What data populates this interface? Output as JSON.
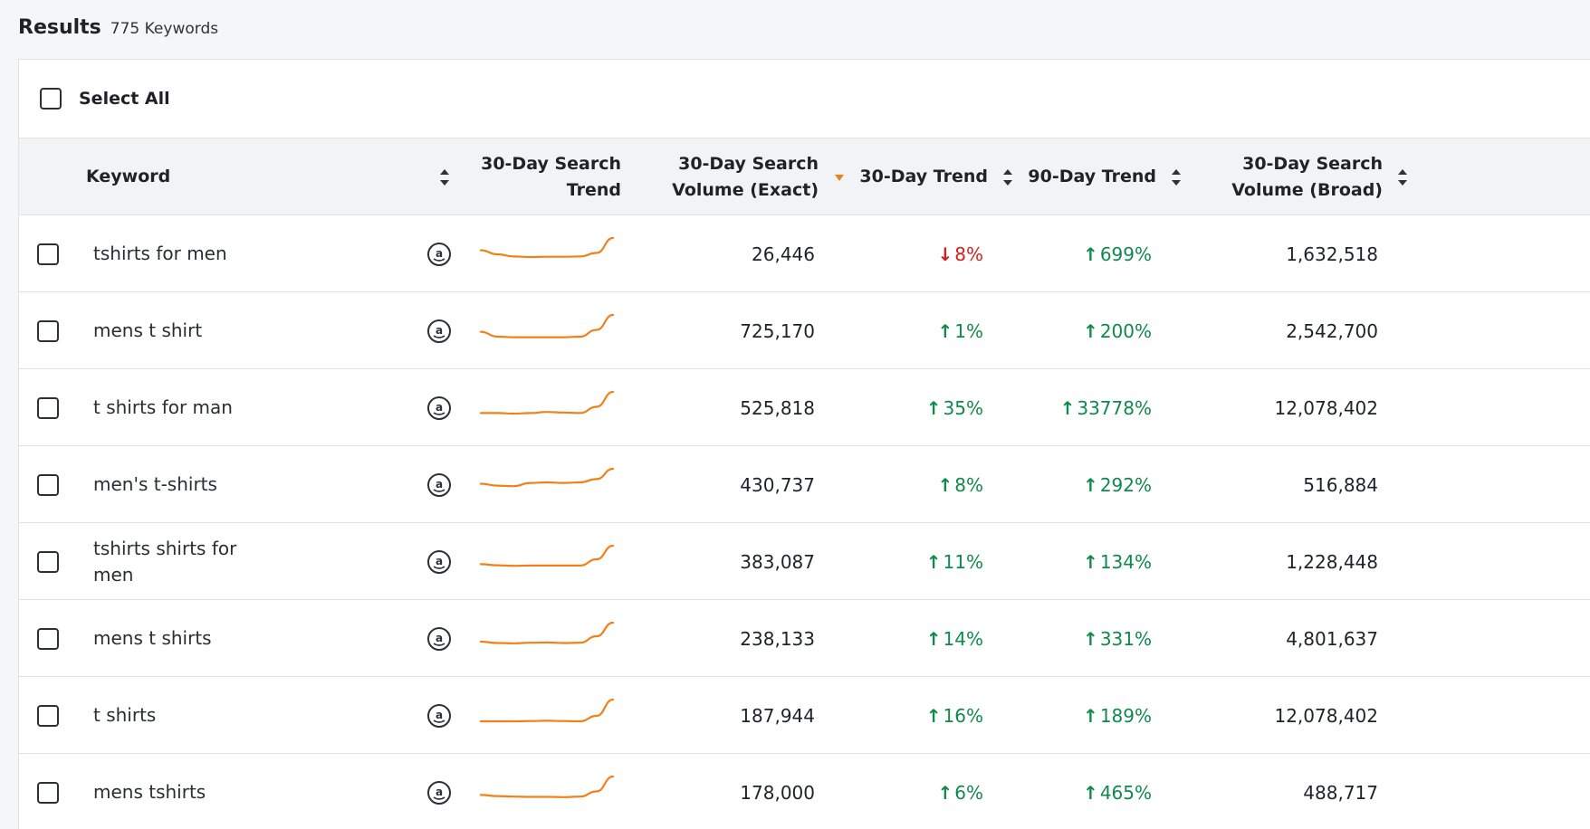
{
  "header": {
    "title": "Results",
    "count": "775 Keywords"
  },
  "select_all": {
    "label": "Select All"
  },
  "columns": {
    "keyword": "Keyword",
    "trend_chart": [
      "30-Day Search",
      "Trend"
    ],
    "volume_exact": [
      "30-Day Search",
      "Volume (Exact)"
    ],
    "trend_30": "30-Day Trend",
    "trend_90": "90-Day Trend",
    "volume_broad": [
      "30-Day Search",
      "Volume (Broad)"
    ]
  },
  "colors": {
    "up": "#0f8a4b",
    "down": "#d5201e",
    "spark": "#f08019",
    "sort_active": "#f08019"
  },
  "rows": [
    {
      "keyword": [
        "tshirts for men"
      ],
      "volume_exact": "26,446",
      "trend_30": {
        "dir": "down",
        "value": "8%"
      },
      "trend_90": {
        "dir": "up",
        "value": "699%"
      },
      "volume_broad": "1,632,518",
      "spark": [
        0.55,
        0.4,
        0.32,
        0.3,
        0.31,
        0.31,
        0.32,
        0.45,
        1.0
      ]
    },
    {
      "keyword": [
        "mens t shirt"
      ],
      "volume_exact": "725,170",
      "trend_30": {
        "dir": "up",
        "value": "1%"
      },
      "trend_90": {
        "dir": "up",
        "value": "200%"
      },
      "volume_broad": "2,542,700",
      "spark": [
        0.38,
        0.2,
        0.18,
        0.18,
        0.18,
        0.18,
        0.2,
        0.45,
        1.0
      ]
    },
    {
      "keyword": [
        "t shirts for man"
      ],
      "volume_exact": "525,818",
      "trend_30": {
        "dir": "up",
        "value": "35%"
      },
      "trend_90": {
        "dir": "up",
        "value": "33778%"
      },
      "volume_broad": "12,078,402",
      "spark": [
        0.22,
        0.22,
        0.2,
        0.22,
        0.26,
        0.24,
        0.22,
        0.45,
        1.0
      ]
    },
    {
      "keyword": [
        "men's t-shirts"
      ],
      "volume_exact": "430,737",
      "trend_30": {
        "dir": "up",
        "value": "8%"
      },
      "trend_90": {
        "dir": "up",
        "value": "292%"
      },
      "volume_broad": "516,884",
      "spark": [
        0.45,
        0.38,
        0.36,
        0.48,
        0.5,
        0.48,
        0.5,
        0.62,
        1.0
      ]
    },
    {
      "keyword": [
        "tshirts shirts for",
        "men"
      ],
      "volume_exact": "383,087",
      "trend_30": {
        "dir": "up",
        "value": "11%"
      },
      "trend_90": {
        "dir": "up",
        "value": "134%"
      },
      "volume_broad": "1,228,448",
      "spark": [
        0.32,
        0.28,
        0.26,
        0.27,
        0.27,
        0.27,
        0.27,
        0.5,
        1.0
      ]
    },
    {
      "keyword": [
        "mens t shirts"
      ],
      "volume_exact": "238,133",
      "trend_30": {
        "dir": "up",
        "value": "14%"
      },
      "trend_90": {
        "dir": "up",
        "value": "331%"
      },
      "volume_broad": "4,801,637",
      "spark": [
        0.3,
        0.25,
        0.24,
        0.26,
        0.27,
        0.25,
        0.26,
        0.5,
        1.0
      ]
    },
    {
      "keyword": [
        "t shirts"
      ],
      "volume_exact": "187,944",
      "trend_30": {
        "dir": "up",
        "value": "16%"
      },
      "trend_90": {
        "dir": "up",
        "value": "189%"
      },
      "volume_broad": "12,078,402",
      "spark": [
        0.2,
        0.2,
        0.2,
        0.21,
        0.22,
        0.21,
        0.2,
        0.4,
        1.0
      ]
    },
    {
      "keyword": [
        "mens tshirts"
      ],
      "volume_exact": "178,000",
      "trend_30": {
        "dir": "up",
        "value": "6%"
      },
      "trend_90": {
        "dir": "up",
        "value": "465%"
      },
      "volume_broad": "488,717",
      "spark": [
        0.32,
        0.28,
        0.26,
        0.25,
        0.25,
        0.24,
        0.26,
        0.45,
        1.0
      ]
    }
  ]
}
